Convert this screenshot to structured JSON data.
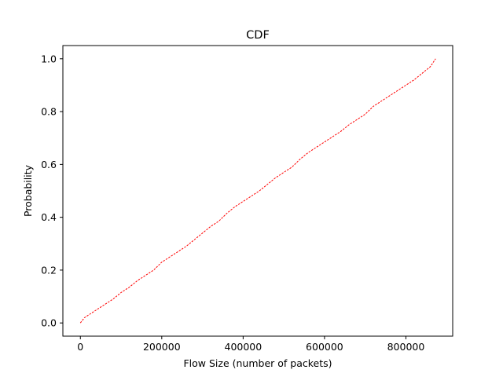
{
  "chart_data": {
    "type": "line",
    "title": "CDF",
    "xlabel": "Flow Size (number of packets)",
    "ylabel": "Probability",
    "xlim": [
      -43000,
      915000
    ],
    "ylim": [
      -0.05,
      1.05
    ],
    "x_ticks": [
      0,
      200000,
      400000,
      600000,
      800000
    ],
    "x_tick_labels": [
      "0",
      "200000",
      "400000",
      "600000",
      "800000"
    ],
    "y_ticks": [
      0.0,
      0.2,
      0.4,
      0.6,
      0.8,
      1.0
    ],
    "y_tick_labels": [
      "0.0",
      "0.2",
      "0.4",
      "0.6",
      "0.8",
      "1.0"
    ],
    "grid": false,
    "series": [
      {
        "line_style": "dashed",
        "color": "#ff0000",
        "x": [
          0,
          10000,
          20000,
          40000,
          60000,
          80000,
          100000,
          120000,
          140000,
          160000,
          180000,
          200000,
          220000,
          240000,
          260000,
          280000,
          300000,
          320000,
          340000,
          360000,
          380000,
          400000,
          420000,
          440000,
          460000,
          480000,
          500000,
          520000,
          540000,
          560000,
          580000,
          600000,
          620000,
          640000,
          660000,
          680000,
          700000,
          720000,
          740000,
          760000,
          780000,
          800000,
          820000,
          840000,
          860000,
          873000
        ],
        "y": [
          0.0,
          0.02,
          0.03,
          0.05,
          0.07,
          0.09,
          0.115,
          0.135,
          0.16,
          0.18,
          0.2,
          0.23,
          0.25,
          0.27,
          0.29,
          0.315,
          0.34,
          0.365,
          0.385,
          0.415,
          0.44,
          0.46,
          0.48,
          0.5,
          0.525,
          0.55,
          0.57,
          0.59,
          0.62,
          0.645,
          0.665,
          0.685,
          0.705,
          0.725,
          0.75,
          0.77,
          0.79,
          0.82,
          0.84,
          0.86,
          0.88,
          0.9,
          0.92,
          0.945,
          0.97,
          1.0
        ]
      }
    ]
  }
}
